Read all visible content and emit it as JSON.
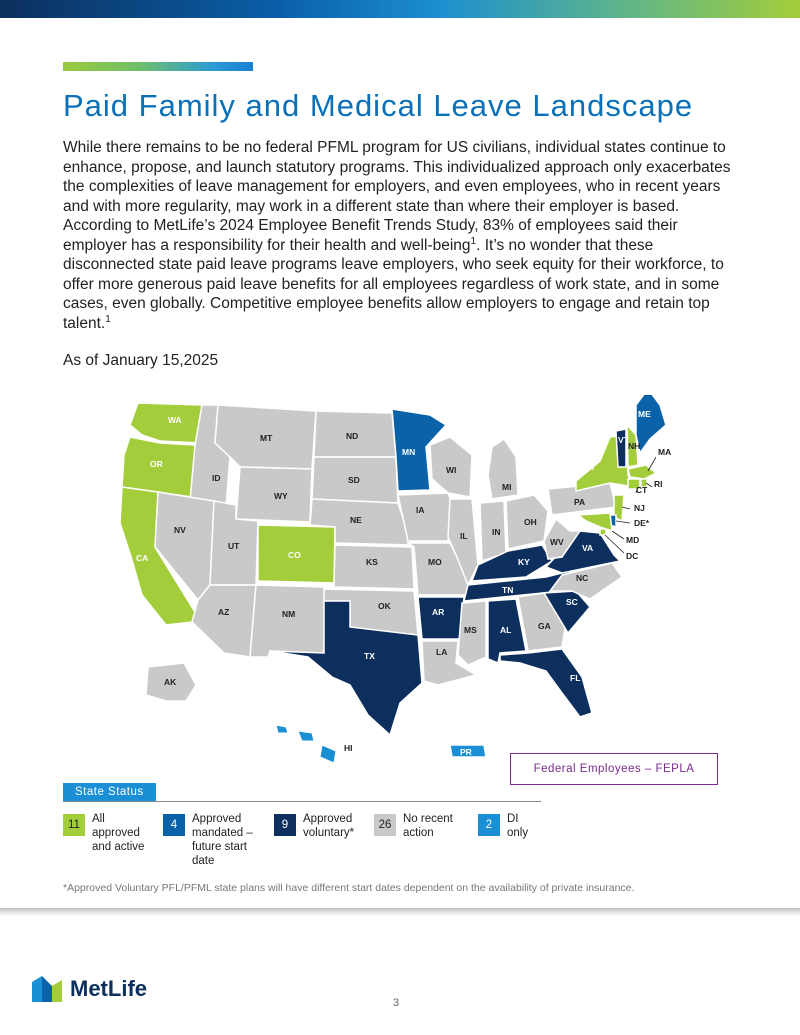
{
  "header": {
    "title": "Paid Family and Medical Leave Landscape",
    "brand_gradient": [
      "#0c2f5e",
      "#1c8fd0",
      "#a3cd3a"
    ]
  },
  "body": {
    "paragraph_part1": "While there remains to be no federal PFML program for US civilians, individual states continue to enhance, propose, and launch statutory programs. This individualized approach only exacerbates the complexities of leave management for employers, and even employees, who in recent years and with more regularity, may work in a different state than where their employer is based. According to MetLife’s 2024 Employee Benefit Trends Study, 83% of employees said their employer has a responsibility for their health and well-being",
    "footnote_mark_1": "1",
    "paragraph_part2": ". It’s no wonder that these disconnected state paid leave programs leave employers, who seek equity for their workforce, to offer more generous paid leave benefits for all employees regardless of work state, and in some cases, even globally. Competitive employee benefits allow employers to engage and retain top talent.",
    "footnote_mark_2": "1",
    "as_of": "As of January 15,2025"
  },
  "map": {
    "state_labels": [
      "WA",
      "OR",
      "CA",
      "ID",
      "NV",
      "MT",
      "WY",
      "UT",
      "AZ",
      "CO",
      "NM",
      "ND",
      "SD",
      "NE",
      "KS",
      "OK",
      "TX",
      "MN",
      "IA",
      "MO",
      "AR",
      "LA",
      "WI",
      "IL",
      "MI",
      "IN",
      "OH",
      "KY",
      "TN",
      "MS",
      "AL",
      "GA",
      "FL",
      "SC",
      "NC",
      "VA",
      "WV",
      "PA",
      "NY",
      "VT",
      "NH",
      "ME",
      "MA",
      "RI",
      "CT",
      "NJ",
      "DE*",
      "MD",
      "DC",
      "AK",
      "HI",
      "PR"
    ],
    "colors": {
      "all_approved": "#a3cd3a",
      "approved_mandated": "#0a63a8",
      "approved_voluntary": "#0c2f5e",
      "no_action": "#c9c9c9",
      "di_only": "#1a8fd6"
    }
  },
  "federal_box": {
    "label": "Federal Employees – FEPLA",
    "color": "#7a2c8f"
  },
  "legend": {
    "header": "State Status",
    "items": [
      {
        "count": "11",
        "label": "All approved and active",
        "color": "#a3cd3a"
      },
      {
        "count": "4",
        "label": "Approved mandated – future start date",
        "color": "#0a63a8"
      },
      {
        "count": "9",
        "label": "Approved voluntary*",
        "color": "#0c2f5e"
      },
      {
        "count": "26",
        "label": "No recent action",
        "color": "#c9c9c9"
      },
      {
        "count": "2",
        "label": "DI only",
        "color": "#1a8fd6"
      }
    ]
  },
  "footnote": "*Approved Voluntary PFL/PFML state plans will have different start dates dependent on the availability of private insurance.",
  "footer": {
    "logo_text": "MetLife",
    "page_number": "3"
  }
}
